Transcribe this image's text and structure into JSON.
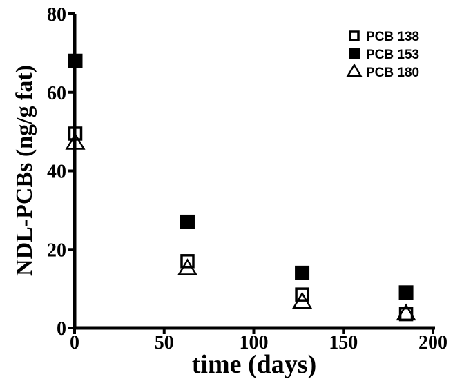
{
  "chart_data": {
    "type": "scatter",
    "xlabel": "time (days)",
    "ylabel": "NDL-PCBs (ng/g fat)",
    "xlim": [
      0,
      200
    ],
    "ylim": [
      0,
      80
    ],
    "xticks": [
      0,
      50,
      100,
      150,
      200
    ],
    "yticks": [
      0,
      20,
      40,
      60,
      80
    ],
    "x_tick_labels": [
      "0",
      "50",
      "100",
      "150",
      "200"
    ],
    "y_tick_labels": [
      "0",
      "20",
      "40",
      "60",
      "80"
    ],
    "grid": false,
    "legend_position": "top-right",
    "series": [
      {
        "name": "PCB 138",
        "marker": "open-square",
        "x": [
          0,
          63,
          127,
          185
        ],
        "y": [
          49.5,
          17,
          8.5,
          3.5
        ]
      },
      {
        "name": "PCB 153",
        "marker": "filled-square",
        "x": [
          0,
          63,
          127,
          185
        ],
        "y": [
          68,
          27,
          14,
          9
        ]
      },
      {
        "name": "PCB 180",
        "marker": "open-triangle",
        "x": [
          0,
          63,
          127,
          185
        ],
        "y": [
          47,
          15,
          6.5,
          3.5
        ]
      }
    ]
  }
}
